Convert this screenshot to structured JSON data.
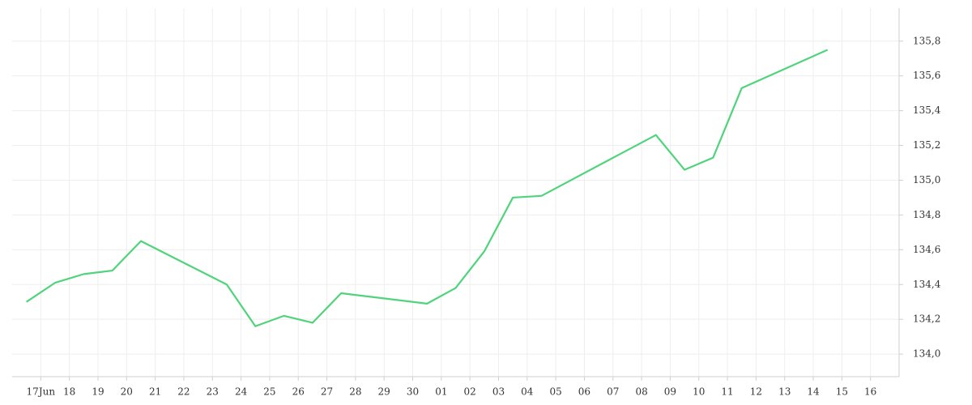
{
  "chart_data": {
    "type": "line",
    "x": [
      -0.5,
      0.5,
      1.5,
      2.5,
      3.5,
      6.5,
      7.5,
      8.5,
      9.5,
      10.5,
      13.5,
      14.5,
      15.5,
      16.5,
      17.5,
      21.5,
      22.5,
      23.5,
      24.5,
      27.5
    ],
    "series": [
      {
        "color": "#4fd47b",
        "values": [
          134.3,
          134.41,
          134.46,
          134.48,
          134.65,
          134.4,
          134.16,
          134.22,
          134.18,
          134.35,
          134.29,
          134.38,
          134.59,
          134.9,
          134.91,
          135.26,
          135.06,
          135.13,
          135.53,
          135.75
        ]
      }
    ],
    "xlim": [
      -1,
      30
    ],
    "xticks": [
      {
        "value": 0,
        "label": "17Jun"
      },
      {
        "value": 1,
        "label": "18"
      },
      {
        "value": 2,
        "label": "19"
      },
      {
        "value": 3,
        "label": "20"
      },
      {
        "value": 4,
        "label": "21"
      },
      {
        "value": 5,
        "label": "22"
      },
      {
        "value": 6,
        "label": "23"
      },
      {
        "value": 7,
        "label": "24"
      },
      {
        "value": 8,
        "label": "25"
      },
      {
        "value": 9,
        "label": "26"
      },
      {
        "value": 10,
        "label": "27"
      },
      {
        "value": 11,
        "label": "28"
      },
      {
        "value": 12,
        "label": "29"
      },
      {
        "value": 13,
        "label": "30"
      },
      {
        "value": 14,
        "label": "01"
      },
      {
        "value": 15,
        "label": "02"
      },
      {
        "value": 16,
        "label": "03"
      },
      {
        "value": 17,
        "label": "04"
      },
      {
        "value": 18,
        "label": "05"
      },
      {
        "value": 19,
        "label": "06"
      },
      {
        "value": 20,
        "label": "07"
      },
      {
        "value": 21,
        "label": "08"
      },
      {
        "value": 22,
        "label": "09"
      },
      {
        "value": 23,
        "label": "10"
      },
      {
        "value": 24,
        "label": "11"
      },
      {
        "value": 25,
        "label": "12"
      },
      {
        "value": 26,
        "label": "13"
      },
      {
        "value": 27,
        "label": "14"
      },
      {
        "value": 28,
        "label": "15"
      },
      {
        "value": 29,
        "label": "16"
      }
    ],
    "ylim": [
      133.87,
      135.99
    ],
    "yticks": [
      {
        "value": 134.0,
        "label": "134,0"
      },
      {
        "value": 134.2,
        "label": "134,2"
      },
      {
        "value": 134.4,
        "label": "134,4"
      },
      {
        "value": 134.6,
        "label": "134,6"
      },
      {
        "value": 134.8,
        "label": "134,8"
      },
      {
        "value": 135.0,
        "label": "135,0"
      },
      {
        "value": 135.2,
        "label": "135,2"
      },
      {
        "value": 135.4,
        "label": "135,4"
      },
      {
        "value": 135.6,
        "label": "135,6"
      },
      {
        "value": 135.8,
        "label": "135,8"
      }
    ],
    "grid": true
  }
}
